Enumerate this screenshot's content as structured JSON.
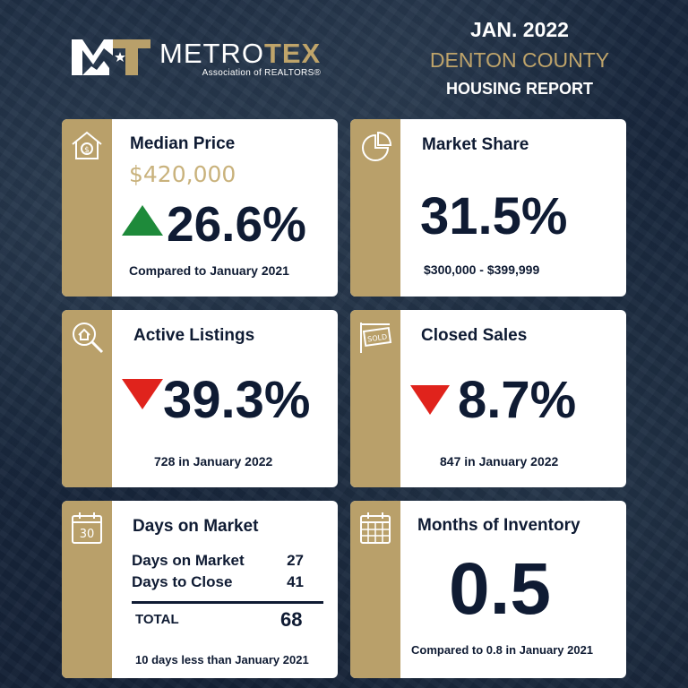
{
  "brand": {
    "name_part1": "METRO",
    "name_part2": "TEX",
    "tagline": "Association of REALTORS®",
    "gold": "#b9a06a",
    "navy": "#0f1b33"
  },
  "report": {
    "period": "JAN. 2022",
    "county": "DENTON COUNTY",
    "title": "HOUSING REPORT"
  },
  "cards": {
    "median_price": {
      "icon": "house-dollar-icon",
      "title": "Median Price",
      "price": "$420,000",
      "change": "26.6%",
      "direction": "up",
      "note": "Compared to January 2021"
    },
    "market_share": {
      "icon": "pie-chart-icon",
      "title": "Market Share",
      "value": "31.5%",
      "note": "$300,000 - $399,999"
    },
    "active_listings": {
      "icon": "magnifier-house-icon",
      "title": "Active Listings",
      "change": "39.3%",
      "direction": "down",
      "note": "728 in January 2022"
    },
    "closed_sales": {
      "icon": "sold-sign-icon",
      "title": "Closed Sales",
      "change": "8.7%",
      "direction": "down",
      "note": "847 in January 2022"
    },
    "days_on_market": {
      "icon": "calendar-30-icon",
      "icon_text": "30",
      "title": "Days on Market",
      "rows": [
        {
          "label": "Days on Market",
          "value": "27"
        },
        {
          "label": "Days to Close",
          "value": "41"
        }
      ],
      "total_label": "TOTAL",
      "total_value": "68",
      "note": "10 days less than January 2021"
    },
    "months_inventory": {
      "icon": "calendar-grid-icon",
      "title": "Months of Inventory",
      "value": "0.5",
      "note": "Compared to 0.8 in January 2021"
    }
  },
  "colors": {
    "up": "#1e8a3a",
    "down": "#e0231c"
  }
}
